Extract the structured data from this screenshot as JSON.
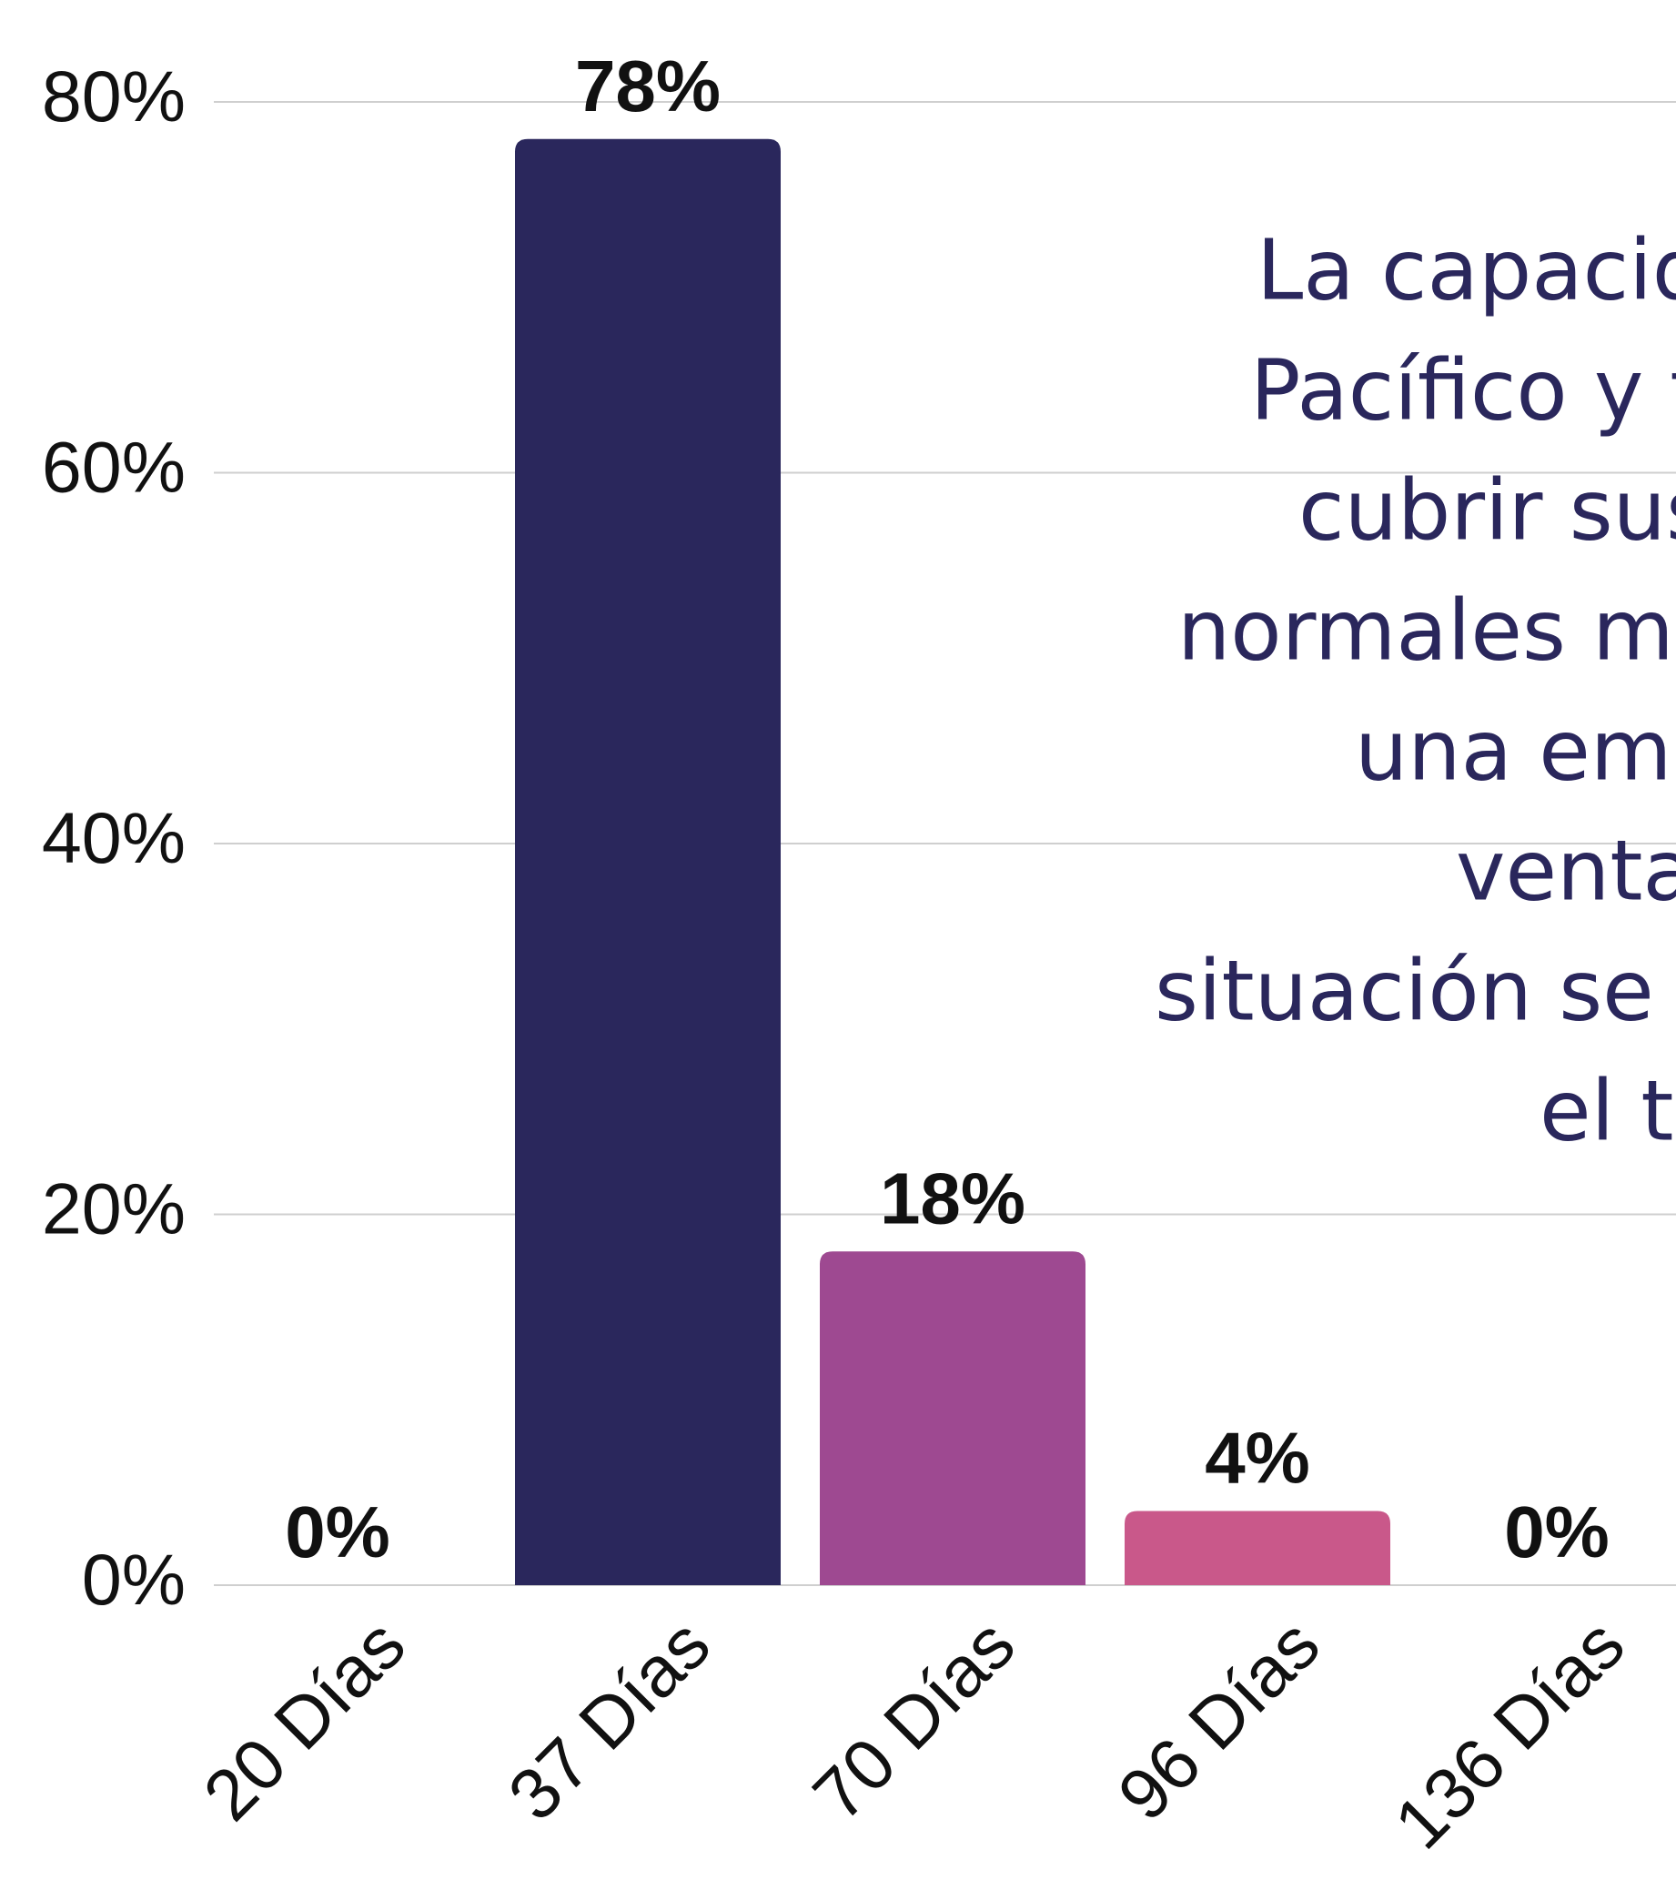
{
  "chart_data": {
    "type": "bar",
    "categories": [
      "20 Días",
      "37 Días",
      "70 Días",
      "96 Días",
      "136 Días"
    ],
    "values": [
      0,
      78,
      18,
      4,
      0
    ],
    "value_labels": [
      "0%",
      "78%",
      "18%",
      "4%",
      "0%"
    ],
    "colors": [
      "#e07a7f",
      "#2a275c",
      "#9e4991",
      "#c9588a",
      "#f09a7a"
    ],
    "ylim": [
      0,
      80
    ],
    "yticks": [
      {
        "value": 0,
        "label": "0%"
      },
      {
        "value": 20,
        "label": "20%"
      },
      {
        "value": 40,
        "label": "40%"
      },
      {
        "value": 60,
        "label": "60%"
      },
      {
        "value": 80,
        "label": "80%"
      }
    ],
    "grid": true,
    "annotation": [
      "La capacida",
      "Pacífico y fr",
      "cubrir sus",
      "normales mue",
      "una emp",
      "ventas",
      "situación se ag",
      "el ta"
    ]
  }
}
